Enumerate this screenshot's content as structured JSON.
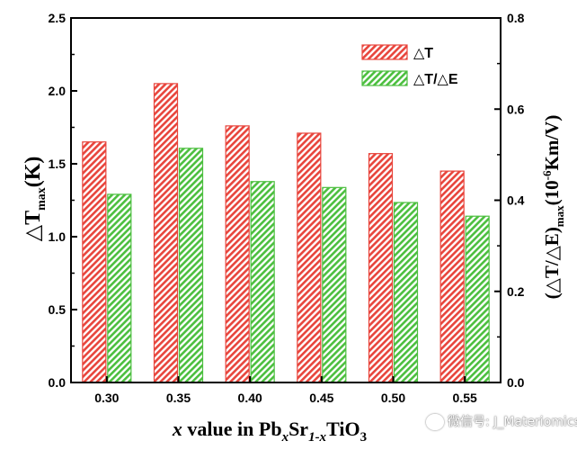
{
  "chart_data": {
    "type": "bar",
    "categories": [
      "0.30",
      "0.35",
      "0.40",
      "0.45",
      "0.50",
      "0.55"
    ],
    "series": [
      {
        "name": "△T",
        "axis": "left",
        "color": "#e8453c",
        "values": [
          1.65,
          2.05,
          1.76,
          1.71,
          1.57,
          1.45
        ]
      },
      {
        "name": "△T/△E",
        "axis": "right",
        "color": "#4cbf3f",
        "values": [
          0.413,
          0.514,
          0.441,
          0.428,
          0.395,
          0.365
        ]
      }
    ],
    "left_axis": {
      "range": [
        0,
        2.5
      ],
      "ticks": [
        "0.0",
        "0.5",
        "1.0",
        "1.5",
        "2.0",
        "2.5"
      ]
    },
    "right_axis": {
      "range": [
        0,
        0.8
      ],
      "ticks": [
        "0.0",
        "0.2",
        "0.4",
        "0.6",
        "0.8"
      ]
    },
    "grid": false,
    "legend_position": "top-right"
  },
  "labels": {
    "x_axis": {
      "pre": "x",
      "mid": " value in Pb",
      "s1": "x",
      "mid2": "Sr",
      "s2": "1-x",
      "post": "TiO",
      "s3": "3"
    },
    "y_left": {
      "pre": "△T",
      "sub": "max",
      "post": "(K)"
    },
    "y_right": {
      "pre": "(△T/△E)",
      "sub": "max",
      "mid": "(10",
      "sup": "-6",
      "post": "Km/V)"
    }
  },
  "watermark": "微信号: J_Materiomics"
}
